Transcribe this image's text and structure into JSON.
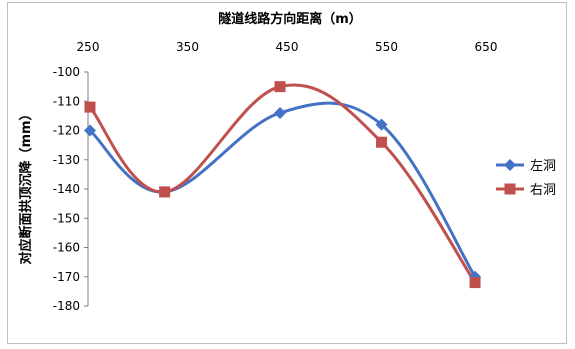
{
  "chart_data": {
    "type": "line",
    "x_axis_position": "top",
    "xlabel": "隧道线路方向距离（m）",
    "ylabel": "对应断面拱顶沉降（mm）",
    "xlim": [
      250,
      650
    ],
    "ylim": [
      -180,
      -100
    ],
    "x_ticks": [
      250,
      350,
      450,
      550,
      650
    ],
    "y_ticks": [
      -100,
      -110,
      -120,
      -130,
      -140,
      -150,
      -160,
      -170,
      -180
    ],
    "grid": false,
    "legend_position": "right",
    "x": [
      252,
      327,
      443,
      545,
      639
    ],
    "series": [
      {
        "name": "左洞",
        "color": "#4472C4",
        "marker": "diamond",
        "values": [
          -120,
          -141,
          -114,
          -118,
          -170
        ]
      },
      {
        "name": "右洞",
        "color": "#C0504D",
        "marker": "square",
        "values": [
          -112,
          -141,
          -105,
          -124,
          -172
        ]
      }
    ]
  }
}
